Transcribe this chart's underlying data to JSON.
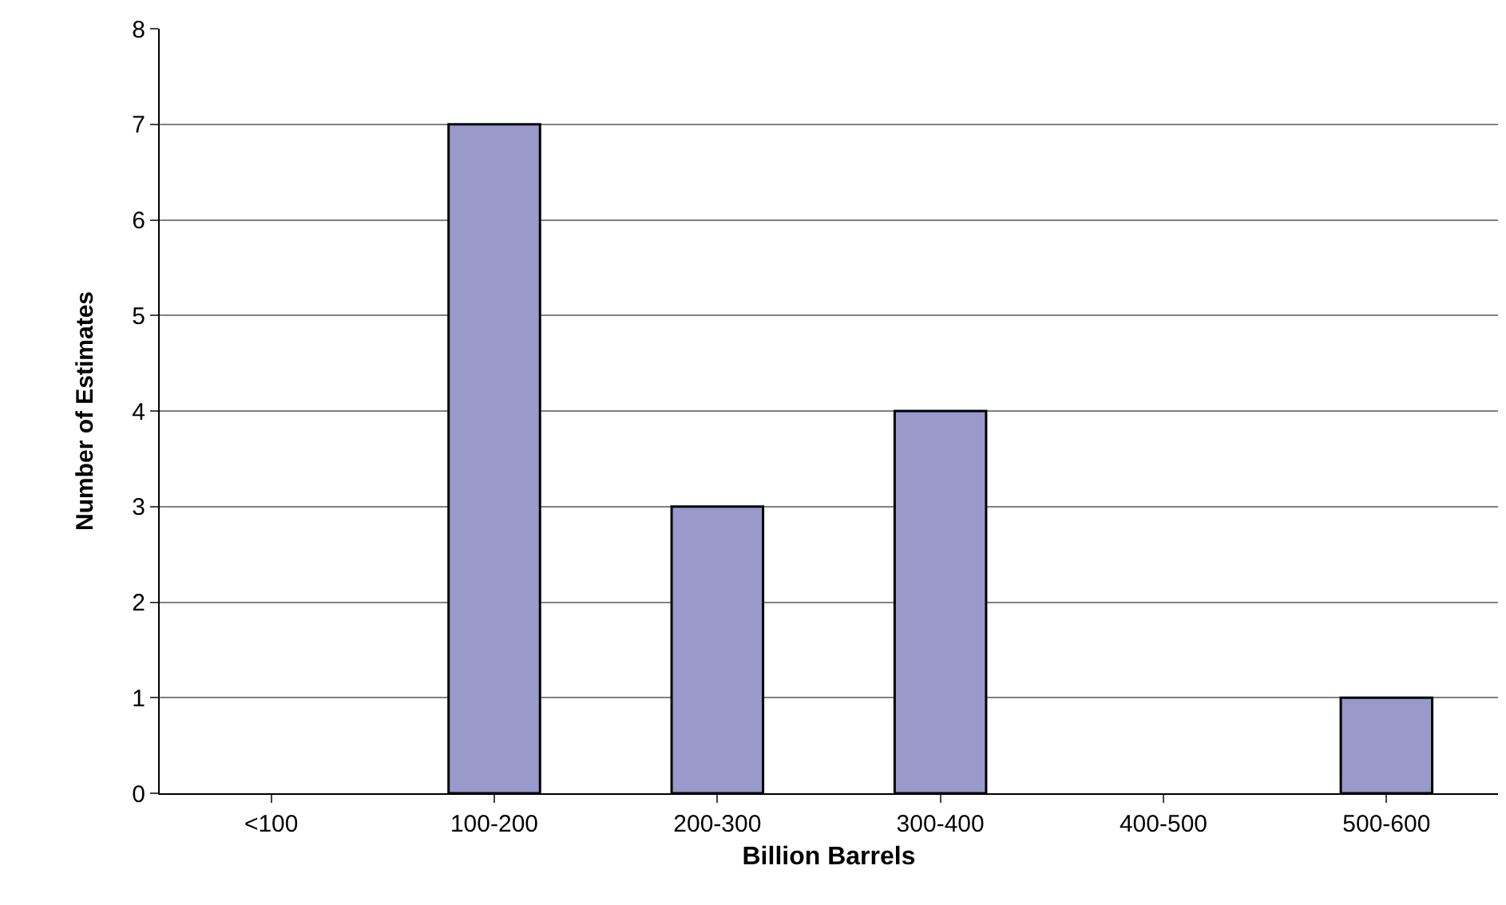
{
  "chart_data": {
    "type": "bar",
    "xlabel": "Billion Barrels",
    "ylabel": "Number of Estimates",
    "categories": [
      "<100",
      "100-200",
      "200-300",
      "300-400",
      "400-500",
      "500-600"
    ],
    "values": [
      0,
      7,
      3,
      4,
      0,
      1
    ],
    "color": "#9999cc",
    "ylim": [
      0,
      8
    ],
    "yticks": [
      0,
      1,
      2,
      3,
      4,
      5,
      6,
      7,
      8
    ],
    "grid": "y",
    "legend": false
  }
}
